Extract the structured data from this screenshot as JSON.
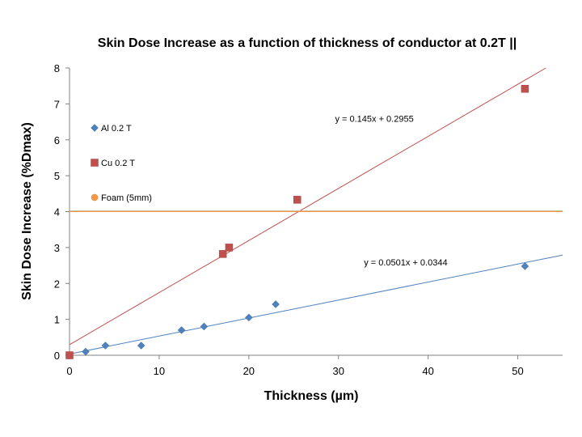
{
  "chart_data": {
    "type": "scatter",
    "title": "Skin Dose Increase as a function of thickness of conductor at 0.2T ||",
    "xlabel": "Thickness (µm)",
    "ylabel": "Skin Dose Increase (%Dmax)",
    "xlim": [
      0,
      55
    ],
    "ylim": [
      0,
      8
    ],
    "xticks": [
      0,
      10,
      20,
      30,
      40,
      50
    ],
    "yticks": [
      0,
      1,
      2,
      3,
      4,
      5,
      6,
      7,
      8
    ],
    "grid": false,
    "legend_position": "left",
    "series": [
      {
        "name": "Al 0.2 T",
        "marker": "diamond",
        "color": "#4f81bd",
        "x": [
          0,
          1.8,
          4,
          8,
          12.5,
          15,
          20,
          23,
          50.8
        ],
        "y": [
          0,
          0.1,
          0.27,
          0.27,
          0.7,
          0.8,
          1.05,
          1.42,
          2.48
        ]
      },
      {
        "name": "Cu 0.2 T",
        "marker": "square",
        "color": "#c0504d",
        "x": [
          0,
          17.1,
          17.8,
          25.4,
          50.8
        ],
        "y": [
          0,
          2.82,
          3.0,
          4.33,
          7.42
        ]
      },
      {
        "name": "Foam (5mm)",
        "marker": "circle",
        "color": "#f79646",
        "x": [],
        "y": []
      }
    ],
    "trendlines": [
      {
        "series": "Al 0.2 T",
        "slope": 0.0501,
        "intercept": 0.0344,
        "color": "#4f81bd",
        "label": "y = 0.0501x + 0.0344",
        "label_at": [
          37.5,
          2.5
        ]
      },
      {
        "series": "Cu 0.2 T",
        "slope": 0.145,
        "intercept": 0.2955,
        "color": "#c0504d",
        "label": "y = 0.145x + 0.2955",
        "label_at": [
          34,
          6.5
        ]
      },
      {
        "series": "Foam (5mm)",
        "slope": 0,
        "intercept": 4.0,
        "color": "#f79646",
        "label": ""
      }
    ]
  }
}
